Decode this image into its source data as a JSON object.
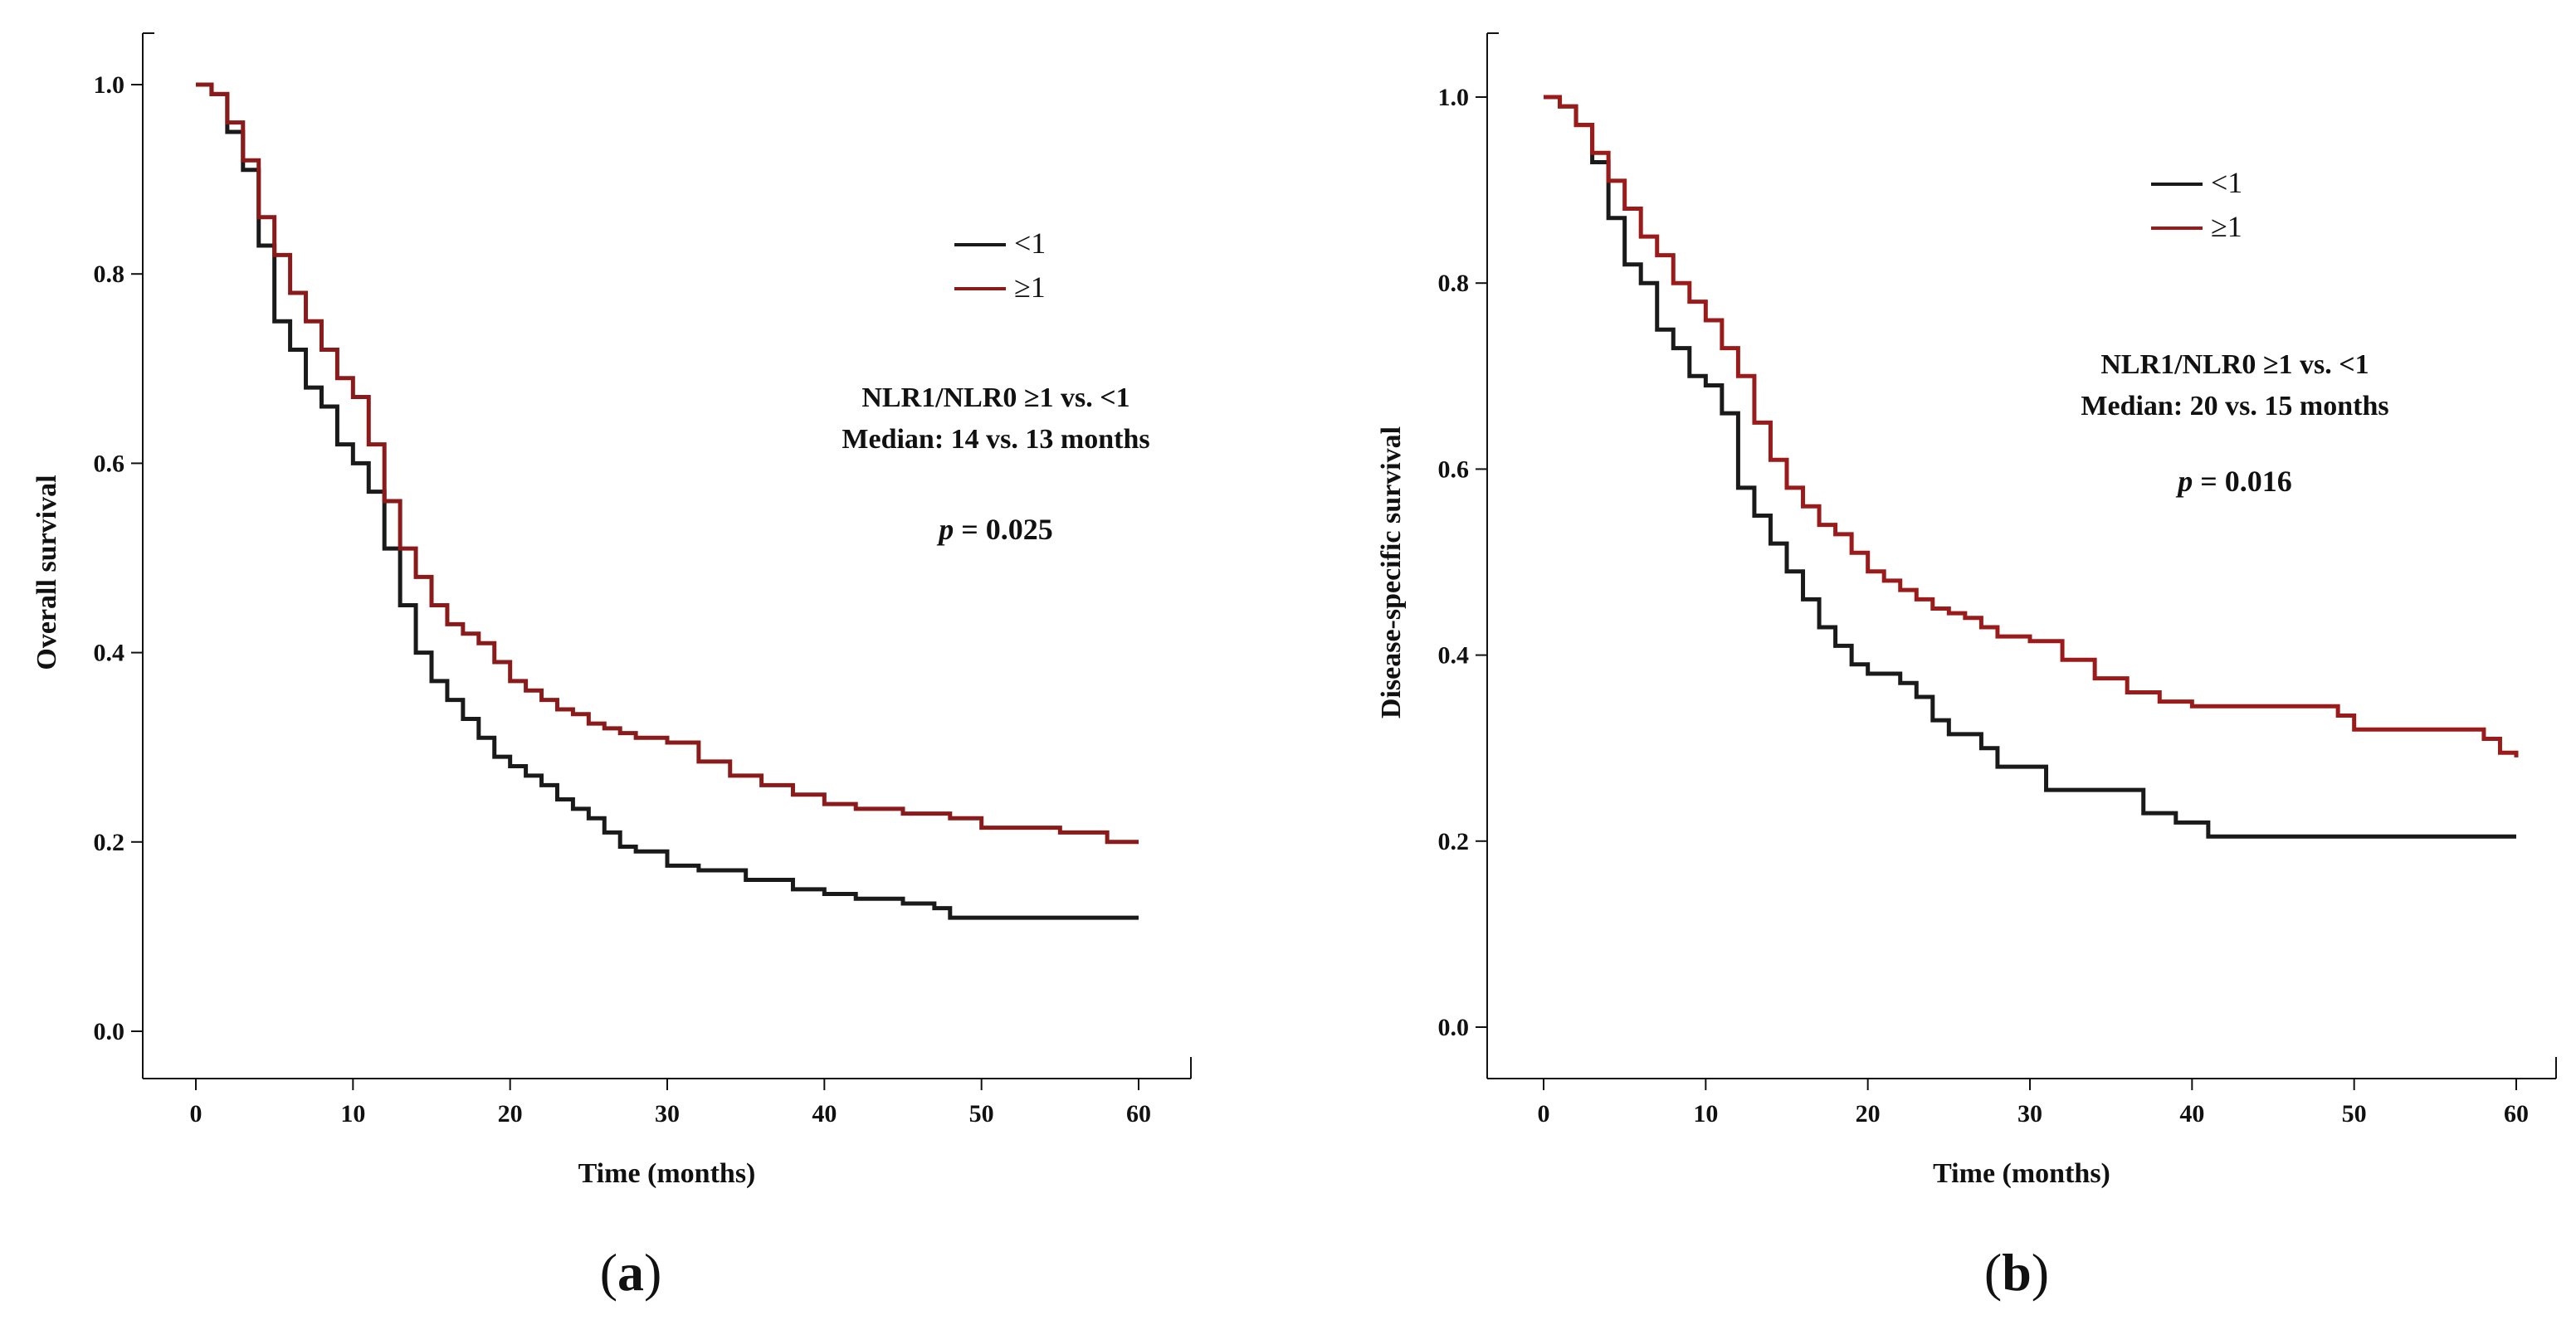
{
  "chart_data": [
    {
      "type": "line",
      "step": "km",
      "xlabel": "Time (months)",
      "ylabel": "Overall survival",
      "xlim": [
        0,
        60
      ],
      "ylim": [
        0,
        1
      ],
      "xticks": [
        "0",
        "10",
        "20",
        "30",
        "40",
        "50",
        "60"
      ],
      "yticks": [
        "0.0",
        "0.2",
        "0.4",
        "0.6",
        "0.8",
        "1.0"
      ],
      "legend_position": "top-right",
      "annotation_line1": "NLR1/NLR0 ≥1 vs. <1",
      "annotation_line2": "Median: 14 vs. 13 months",
      "p_label": "p",
      "p_text": " = 0.025",
      "caption": "a",
      "series": [
        {
          "name": "<1",
          "color": "#1a1a1a",
          "x": [
            0,
            1,
            2,
            3,
            4,
            5,
            6,
            7,
            8,
            9,
            10,
            11,
            12,
            13,
            14,
            15,
            16,
            17,
            18,
            19,
            20,
            21,
            22,
            23,
            24,
            25,
            26,
            27,
            28,
            30,
            32,
            35,
            38,
            40,
            42,
            45,
            47,
            48,
            50,
            55,
            60
          ],
          "y": [
            1.0,
            0.99,
            0.95,
            0.91,
            0.83,
            0.75,
            0.72,
            0.68,
            0.66,
            0.62,
            0.6,
            0.57,
            0.51,
            0.45,
            0.4,
            0.37,
            0.35,
            0.33,
            0.31,
            0.29,
            0.28,
            0.27,
            0.26,
            0.245,
            0.235,
            0.225,
            0.21,
            0.195,
            0.19,
            0.175,
            0.17,
            0.16,
            0.15,
            0.145,
            0.14,
            0.135,
            0.13,
            0.12,
            0.12,
            0.12,
            0.12
          ]
        },
        {
          "name": "≥1",
          "color": "#8b1a1a",
          "x": [
            0,
            1,
            2,
            3,
            4,
            5,
            6,
            7,
            8,
            9,
            10,
            11,
            12,
            13,
            14,
            15,
            16,
            17,
            18,
            19,
            20,
            21,
            22,
            23,
            24,
            25,
            26,
            27,
            28,
            30,
            32,
            34,
            36,
            38,
            40,
            42,
            45,
            48,
            50,
            55,
            58,
            60
          ],
          "y": [
            1.0,
            0.99,
            0.96,
            0.92,
            0.86,
            0.82,
            0.78,
            0.75,
            0.72,
            0.69,
            0.67,
            0.62,
            0.56,
            0.51,
            0.48,
            0.45,
            0.43,
            0.42,
            0.41,
            0.39,
            0.37,
            0.36,
            0.35,
            0.34,
            0.335,
            0.325,
            0.32,
            0.315,
            0.31,
            0.305,
            0.285,
            0.27,
            0.26,
            0.25,
            0.24,
            0.235,
            0.23,
            0.225,
            0.215,
            0.21,
            0.2,
            0.2
          ]
        }
      ]
    },
    {
      "type": "line",
      "step": "km",
      "xlabel": "Time (months)",
      "ylabel": "Disease-specific survival",
      "xlim": [
        0,
        60
      ],
      "ylim": [
        0,
        1
      ],
      "xticks": [
        "0",
        "10",
        "20",
        "30",
        "40",
        "50",
        "60"
      ],
      "yticks": [
        "0.0",
        "0.2",
        "0.4",
        "0.6",
        "0.8",
        "1.0"
      ],
      "legend_position": "top-right",
      "annotation_line1": "NLR1/NLR0 ≥1 vs. <1",
      "annotation_line2": "Median: 20 vs. 15 months",
      "p_label": "p",
      "p_text": " = 0.016",
      "caption": "b",
      "series": [
        {
          "name": "<1",
          "color": "#1a1a1a",
          "x": [
            0,
            1,
            2,
            3,
            4,
            5,
            6,
            7,
            8,
            9,
            10,
            11,
            12,
            13,
            14,
            15,
            16,
            17,
            18,
            19,
            20,
            22,
            23,
            24,
            25,
            27,
            28,
            31,
            35,
            37,
            39,
            41,
            45,
            50,
            55,
            60
          ],
          "y": [
            1.0,
            0.99,
            0.97,
            0.93,
            0.87,
            0.82,
            0.8,
            0.75,
            0.73,
            0.7,
            0.69,
            0.66,
            0.58,
            0.55,
            0.52,
            0.49,
            0.46,
            0.43,
            0.41,
            0.39,
            0.38,
            0.37,
            0.355,
            0.33,
            0.315,
            0.3,
            0.28,
            0.255,
            0.255,
            0.23,
            0.22,
            0.205,
            0.205,
            0.205,
            0.205,
            0.205
          ]
        },
        {
          "name": "≥1",
          "color": "#9b1b1b",
          "x": [
            0,
            1,
            2,
            3,
            4,
            5,
            6,
            7,
            8,
            9,
            10,
            11,
            12,
            13,
            14,
            15,
            16,
            17,
            18,
            19,
            20,
            21,
            22,
            23,
            24,
            25,
            26,
            27,
            28,
            30,
            32,
            34,
            36,
            38,
            40,
            45,
            49,
            50,
            55,
            58,
            59,
            60
          ],
          "y": [
            1.0,
            0.99,
            0.97,
            0.94,
            0.91,
            0.88,
            0.85,
            0.83,
            0.8,
            0.78,
            0.76,
            0.73,
            0.7,
            0.65,
            0.61,
            0.58,
            0.56,
            0.54,
            0.53,
            0.51,
            0.49,
            0.48,
            0.47,
            0.46,
            0.45,
            0.445,
            0.44,
            0.43,
            0.42,
            0.415,
            0.395,
            0.375,
            0.36,
            0.35,
            0.345,
            0.345,
            0.335,
            0.32,
            0.32,
            0.31,
            0.295,
            0.29
          ]
        }
      ]
    }
  ]
}
